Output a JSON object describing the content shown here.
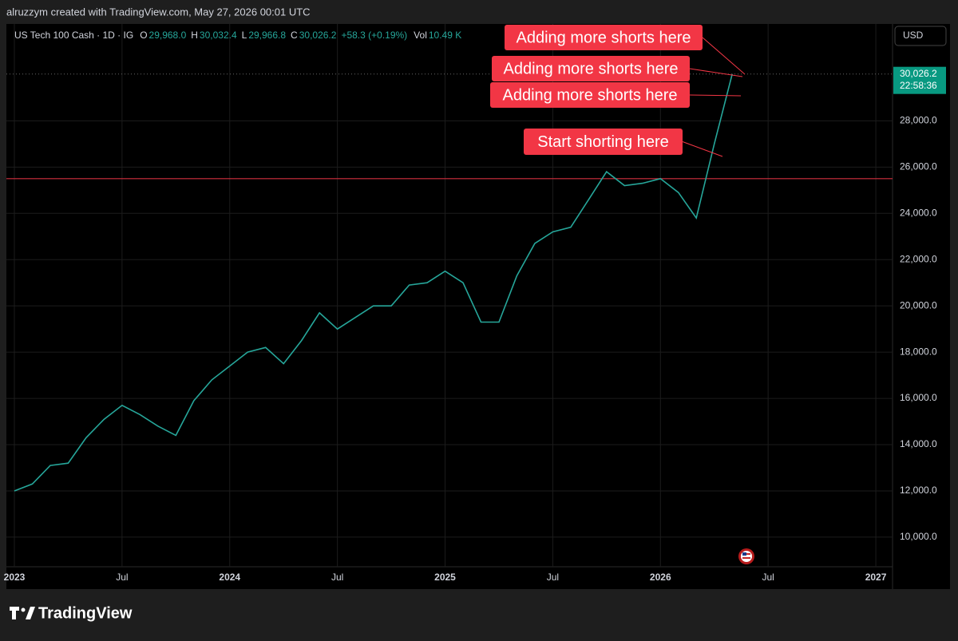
{
  "header": {
    "credit": "alruzzym created with TradingView.com, May 27, 2026 00:01 UTC"
  },
  "footer": {
    "brand": "TradingView"
  },
  "chart_data": {
    "type": "line",
    "title": "US Tech 100 Cash · 1D · IG",
    "ohlc": [
      {
        "key": "O",
        "label": "29,968.0"
      },
      {
        "key": "H",
        "label": "30,032.4"
      },
      {
        "key": "L",
        "label": "29,966.8"
      },
      {
        "key": "C",
        "label": "30,026.2"
      }
    ],
    "change": "+58.3 (+0.19%)",
    "volume": {
      "key": "Vol",
      "label": "10.49 K"
    },
    "currency": "USD",
    "x": [
      "2023-01",
      "2023-02",
      "2023-03",
      "2023-04",
      "2023-05",
      "2023-06",
      "2023-07",
      "2023-08",
      "2023-09",
      "2023-10",
      "2023-11",
      "2023-12",
      "2024-01",
      "2024-02",
      "2024-03",
      "2024-04",
      "2024-05",
      "2024-06",
      "2024-07",
      "2024-08",
      "2024-09",
      "2024-10",
      "2024-11",
      "2024-12",
      "2025-01",
      "2025-02",
      "2025-03",
      "2025-04",
      "2025-05",
      "2025-06",
      "2025-07",
      "2025-08",
      "2025-09",
      "2025-10",
      "2025-11",
      "2025-12",
      "2026-01",
      "2026-02",
      "2026-03",
      "2026-04",
      "2026-05"
    ],
    "series": [
      {
        "name": "US Tech 100 Cash",
        "color": "#26a69a",
        "values": [
          12000,
          12300,
          13100,
          13200,
          14300,
          15100,
          15700,
          15300,
          14800,
          14400,
          15900,
          16800,
          17400,
          18000,
          18200,
          17500,
          18500,
          19700,
          19000,
          19500,
          20000,
          20000,
          20900,
          21000,
          21500,
          21000,
          19300,
          19300,
          21300,
          22700,
          23200,
          23400,
          24600,
          25800,
          25200,
          25300,
          25500,
          24900,
          23800,
          27000,
          30026.2
        ]
      }
    ],
    "last_price": {
      "value": 30026.2,
      "label": "30,026.2"
    },
    "countdown": "22:58:36",
    "hline": {
      "value": 25500,
      "color": "#d32f3f"
    },
    "ylim": [
      8720,
      32190
    ],
    "yticks": [
      {
        "value": 10000,
        "label": "10,000.0"
      },
      {
        "value": 12000,
        "label": "12,000.0"
      },
      {
        "value": 14000,
        "label": "14,000.0"
      },
      {
        "value": 16000,
        "label": "16,000.0"
      },
      {
        "value": 18000,
        "label": "18,000.0"
      },
      {
        "value": 20000,
        "label": "20,000.0"
      },
      {
        "value": 22000,
        "label": "22,000.0"
      },
      {
        "value": 24000,
        "label": "24,000.0"
      },
      {
        "value": 26000,
        "label": "26,000.0"
      },
      {
        "value": 28000,
        "label": "28,000.0"
      }
    ],
    "xticks": [
      {
        "value": "2023-01",
        "label": "2023"
      },
      {
        "value": "2023-07",
        "label": "Jul"
      },
      {
        "value": "2024-01",
        "label": "2024"
      },
      {
        "value": "2024-07",
        "label": "Jul"
      },
      {
        "value": "2025-01",
        "label": "2025"
      },
      {
        "value": "2025-07",
        "label": "Jul"
      },
      {
        "value": "2026-01",
        "label": "2026"
      },
      {
        "value": "2026-07",
        "label": "Jul"
      },
      {
        "value": "2027-01",
        "label": "2027"
      }
    ],
    "grid": true,
    "annotations": [
      "Adding more shorts here",
      "Adding more shorts here",
      "Adding more shorts here",
      "Start shorting here"
    ],
    "annotation_color": "#f23645"
  }
}
